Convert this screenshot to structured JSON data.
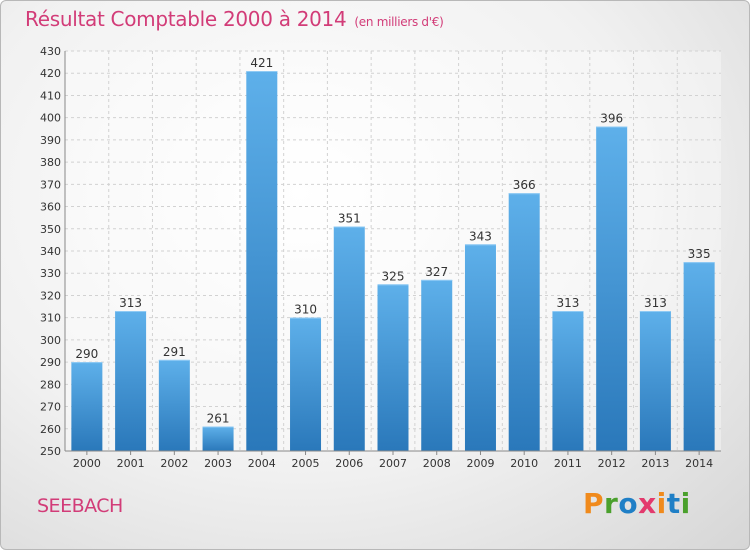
{
  "chart_data": {
    "type": "bar",
    "title": "Résultat Comptable 2000 à 2014",
    "unit_note": "(en milliers d'€)",
    "categories": [
      "2000",
      "2001",
      "2002",
      "2003",
      "2004",
      "2005",
      "2006",
      "2007",
      "2008",
      "2009",
      "2010",
      "2011",
      "2012",
      "2013",
      "2014"
    ],
    "values": [
      290,
      313,
      291,
      261,
      421,
      310,
      351,
      325,
      327,
      343,
      366,
      313,
      396,
      313,
      335
    ],
    "ylim": [
      250,
      430
    ],
    "ytick_step": 10,
    "xlabel": "",
    "ylabel": "",
    "grid": true
  },
  "footer": {
    "city": "SEEBACH",
    "logo": "Proxiti"
  },
  "colors": {
    "accent": "#d23c78",
    "bar_light": "#5eb0ea",
    "bar_dark": "#2a78ba",
    "logo_letters": [
      "#f08a1c",
      "#4aa02c",
      "#1f7fc6",
      "#e33a6d",
      "#f08a1c",
      "#1f7fc6",
      "#4aa02c"
    ]
  }
}
